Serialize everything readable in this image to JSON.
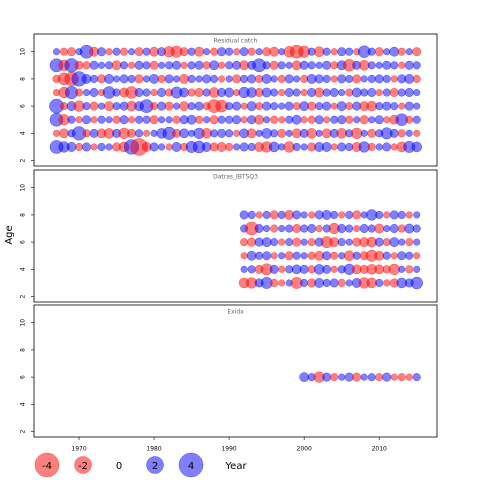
{
  "chart_data": {
    "type": "bubble",
    "ylabel": "Age",
    "xlabel": "Year",
    "xlim": [
      1964,
      2017.7
    ],
    "xticks": [
      1970,
      1980,
      1990,
      2000,
      2010
    ],
    "ylim": [
      1.6,
      11.3
    ],
    "yticks": [
      2,
      4,
      6,
      8,
      10
    ],
    "positive_color": "#0000ff",
    "negative_color": "#ff0000",
    "legend": [
      -4,
      -2,
      0,
      2,
      4
    ],
    "panels": [
      {
        "title": "Residual catch",
        "x": [
          1967,
          1968,
          1969,
          1970,
          1971,
          1972,
          1973,
          1974,
          1975,
          1976,
          1977,
          1978,
          1979,
          1980,
          1981,
          1982,
          1983,
          1984,
          1985,
          1986,
          1987,
          1988,
          1989,
          1990,
          1991,
          1992,
          1993,
          1994,
          1995,
          1996,
          1997,
          1998,
          1999,
          2000,
          2001,
          2002,
          2003,
          2004,
          2005,
          2006,
          2007,
          2008,
          2009,
          2010,
          2011,
          2012,
          2013,
          2014,
          2015
        ],
        "y": [
          3,
          4,
          5,
          6,
          7,
          8,
          9,
          10
        ],
        "values": [
          [
            1.2,
            0.8,
            0.6,
            -0.4,
            0.5,
            -0.3,
            0.4,
            0.3,
            -0.5,
            -0.7,
            1.5,
            -2.0,
            -0.6,
            0.5,
            0.3,
            -0.3,
            0.6,
            -0.4,
            0.9,
            1.0,
            0.6,
            -0.5,
            -0.6,
            -0.4,
            0.3,
            0.5,
            0.4,
            -0.6,
            -0.8,
            0.7,
            0.3,
            -0.8,
            0.4,
            0.3,
            -0.5,
            0.6,
            0.6,
            -0.3,
            0.5,
            0.4,
            -0.6,
            0.8,
            -0.4,
            0.3,
            0.5,
            -0.3,
            -0.7,
            0.9,
            0.7
          ],
          [
            -0.3,
            -0.6,
            0.4,
            1.3,
            -0.4,
            0.5,
            -0.6,
            -0.7,
            0.5,
            -0.8,
            -0.5,
            0.4,
            -0.3,
            0.3,
            0.7,
            1.1,
            -0.5,
            0.6,
            0.3,
            0.8,
            -0.7,
            0.4,
            0.5,
            0.4,
            -0.3,
            0.6,
            -0.6,
            0.3,
            0.7,
            0.4,
            -0.5,
            0.3,
            -0.6,
            0.5,
            -0.7,
            0.3,
            -0.6,
            0.5,
            -0.7,
            0.4,
            -0.8,
            0.3,
            -0.5,
            0.4,
            0.9,
            0.5,
            -0.4,
            0.3,
            -0.3
          ],
          [
            1.2,
            -0.8,
            0.4,
            -0.3,
            0.5,
            -0.3,
            0.4,
            0.3,
            -0.4,
            0.5,
            -0.3,
            0.4,
            0.4,
            -0.5,
            0.3,
            0.3,
            -0.4,
            0.5,
            0.6,
            -0.4,
            0.3,
            -0.5,
            0.4,
            0.4,
            0.5,
            -0.3,
            0.5,
            -0.6,
            0.3,
            -0.4,
            -0.3,
            0.4,
            0.6,
            -0.3,
            -0.4,
            0.5,
            -0.3,
            0.4,
            0.5,
            -0.4,
            0.3,
            -0.5,
            0.3,
            0.5,
            -0.3,
            -0.6,
            1.0,
            -0.4,
            0.4
          ],
          [
            1.4,
            -0.4,
            0.6,
            -0.8,
            0.4,
            -0.5,
            0.3,
            -0.6,
            0.4,
            0.5,
            -0.7,
            0.6,
            1.2,
            -0.4,
            0.5,
            -0.5,
            0.3,
            -0.6,
            0.4,
            0.5,
            -0.4,
            -1.2,
            -1.0,
            0.4,
            0.5,
            -0.3,
            0.6,
            -0.4,
            0.5,
            0.4,
            0.3,
            0.5,
            -0.4,
            0.6,
            -0.5,
            0.4,
            0.5,
            -0.3,
            0.6,
            -0.4,
            0.5,
            -0.6,
            -0.7,
            0.4,
            0.5,
            0.4,
            -0.3,
            0.5,
            0.3
          ],
          [
            -0.3,
            -0.8,
            1.1,
            -0.4,
            0.3,
            0.5,
            -0.3,
            1.0,
            0.4,
            -0.6,
            -1.0,
            0.5,
            0.4,
            -0.3,
            0.5,
            -0.4,
            0.9,
            0.6,
            -0.4,
            -0.5,
            0.4,
            -0.7,
            0.5,
            0.6,
            -0.3,
            0.8,
            0.7,
            -0.5,
            0.6,
            0.4,
            -0.3,
            0.5,
            0.4,
            -0.3,
            0.5,
            -0.6,
            0.4,
            0.5,
            0.3,
            -0.4,
            0.6,
            0.4,
            0.5,
            -0.3,
            0.4,
            -0.5,
            0.4,
            0.5,
            0.3
          ],
          [
            -0.4,
            -1.0,
            -1.3,
            1.5,
            0.6,
            0.4,
            -0.5,
            0.6,
            0.3,
            0.5,
            0.4,
            -0.5,
            0.3,
            0.6,
            -0.4,
            0.5,
            0.3,
            -0.6,
            0.4,
            0.3,
            0.5,
            0.4,
            -0.3,
            0.3,
            -0.5,
            0.4,
            0.5,
            -0.4,
            0.6,
            0.3,
            -0.4,
            0.5,
            0.3,
            -0.4,
            0.6,
            0.5,
            0.4,
            -0.3,
            0.5,
            0.4,
            -0.5,
            0.3,
            0.4,
            0.5,
            0.4,
            -0.3,
            0.5,
            0.6,
            -0.4
          ],
          [
            1.2,
            -0.8,
            1.3,
            -0.5,
            -0.4,
            0.5,
            0.3,
            0.4,
            -0.6,
            0.4,
            -0.3,
            0.5,
            0.4,
            -0.5,
            0.3,
            0.4,
            0.5,
            -0.3,
            0.4,
            0.5,
            -0.4,
            0.6,
            -0.3,
            0.4,
            0.5,
            -0.6,
            0.5,
            1.2,
            0.4,
            -0.5,
            0.4,
            0.3,
            -0.6,
            0.5,
            0.4,
            0.3,
            0.5,
            -0.4,
            0.6,
            -1.0,
            0.5,
            -0.7,
            0.4,
            0.3,
            0.5,
            0.4,
            -0.3,
            0.5,
            0.4
          ],
          [
            0.3,
            -0.4,
            -0.5,
            0.3,
            1.2,
            -0.6,
            0.5,
            -0.3,
            0.4,
            -0.4,
            0.3,
            -0.5,
            0.4,
            -0.6,
            0.5,
            -0.8,
            -0.9,
            -0.5,
            0.4,
            -0.6,
            0.3,
            -0.4,
            0.5,
            0.4,
            -0.3,
            0.5,
            -0.4,
            0.3,
            -0.5,
            -0.6,
            0.3,
            -0.8,
            -1.2,
            -0.9,
            0.4,
            -0.7,
            0.4,
            -0.3,
            0.5,
            0.4,
            -0.3,
            1.0,
            0.4,
            -0.5,
            0.3,
            0.6,
            -0.4,
            0.3,
            -0.5
          ]
        ]
      },
      {
        "title": "Datras_IBTSQ3",
        "x": [
          1992,
          1993,
          1994,
          1995,
          1996,
          1997,
          1998,
          1999,
          2000,
          2001,
          2002,
          2003,
          2004,
          2005,
          2006,
          2007,
          2008,
          2009,
          2010,
          2011,
          2012,
          2013,
          2014,
          2015
        ],
        "y": [
          3,
          4,
          5,
          6,
          7,
          8
        ],
        "values": [
          [
            -0.7,
            -0.8,
            0.5,
            0.9,
            -0.4,
            -0.3,
            0.3,
            -0.9,
            0.4,
            -0.5,
            0.6,
            0.4,
            0.5,
            -0.4,
            0.3,
            0.6,
            -0.8,
            -0.7,
            0.4,
            -0.3,
            -0.5,
            0.7,
            0.5,
            1.0
          ],
          [
            0.3,
            0.4,
            -0.5,
            -0.9,
            0.5,
            -0.3,
            0.4,
            0.6,
            0.5,
            -0.4,
            0.7,
            0.5,
            -0.3,
            0.4,
            0.8,
            -0.6,
            -0.5,
            -0.7,
            -0.6,
            -0.4,
            -0.8,
            0.3,
            -0.4,
            0.3
          ],
          [
            -0.3,
            0.6,
            0.4,
            0.5,
            -0.3,
            0.3,
            -0.5,
            0.4,
            0.3,
            -0.4,
            -0.6,
            0.5,
            -0.4,
            0.3,
            -0.7,
            0.4,
            -0.5,
            -0.9,
            -0.6,
            0.4,
            -0.3,
            0.5,
            0.4,
            -0.3
          ],
          [
            -0.4,
            -0.5,
            0.5,
            0.6,
            0.4,
            -0.3,
            0.4,
            -0.5,
            0.3,
            -0.4,
            0.5,
            -0.9,
            -0.6,
            0.4,
            0.3,
            -0.5,
            -0.6,
            -0.7,
            0.5,
            -0.4,
            0.6,
            0.3,
            -0.4,
            0.3
          ],
          [
            0.4,
            -1.2,
            0.5,
            0.3,
            -0.4,
            0.3,
            0.4,
            -0.5,
            0.4,
            0.5,
            -0.3,
            0.4,
            -0.8,
            0.5,
            0.4,
            -0.3,
            0.5,
            0.4,
            -0.6,
            0.3,
            0.5,
            -0.4,
            0.6,
            0.4
          ],
          [
            0.5,
            0.4,
            -0.3,
            0.4,
            -0.5,
            0.4,
            -0.6,
            0.5,
            0.3,
            -0.3,
            0.5,
            0.6,
            0.4,
            -0.3,
            0.4,
            -0.5,
            0.3,
            0.8,
            0.4,
            -0.3,
            0.5,
            0.4,
            -0.3,
            0.3
          ]
        ]
      },
      {
        "title": "Exidx",
        "x": [
          2000,
          2001,
          2002,
          2003,
          2004,
          2005,
          2006,
          2007,
          2008,
          2009,
          2010,
          2011,
          2012,
          2013,
          2014,
          2015
        ],
        "y": [
          6
        ],
        "values": [
          [
            0.6,
            0.4,
            -0.8,
            0.5,
            -0.4,
            0.3,
            0.5,
            -0.5,
            0.3,
            0.4,
            -0.4,
            0.5,
            -0.3,
            -0.4,
            -0.3,
            0.4
          ]
        ]
      }
    ]
  }
}
